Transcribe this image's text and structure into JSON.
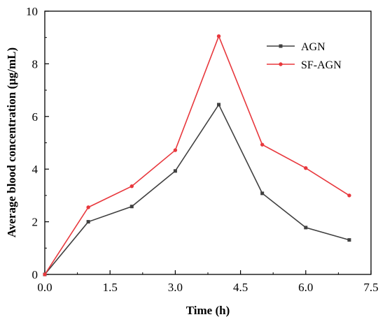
{
  "chart_data": {
    "type": "line",
    "title": "",
    "xlabel": "Time (h)",
    "ylabel": "Average blood concentration (μg/mL)",
    "xlim": [
      0,
      7.5
    ],
    "ylim": [
      0,
      10
    ],
    "xticks": [
      0,
      1.5,
      3.0,
      4.5,
      6.0,
      7.5
    ],
    "xtick_labels": [
      "0.0",
      "1.5",
      "3.0",
      "4.5",
      "6.0",
      "7.5"
    ],
    "yticks": [
      0,
      2,
      4,
      6,
      8,
      10
    ],
    "ytick_labels": [
      "0",
      "2",
      "4",
      "6",
      "8",
      "10"
    ],
    "grid": false,
    "legend_position": "top-right",
    "x": [
      0,
      1,
      2,
      3,
      4,
      5,
      6,
      7
    ],
    "series": [
      {
        "name": "AGN",
        "color": "#404040",
        "marker": "square",
        "values": [
          0,
          2.0,
          2.58,
          3.93,
          6.45,
          3.08,
          1.78,
          1.31
        ]
      },
      {
        "name": "SF-AGN",
        "color": "#e8383d",
        "marker": "circle",
        "values": [
          0,
          2.55,
          3.35,
          4.72,
          9.05,
          4.93,
          4.04,
          3.0
        ]
      }
    ]
  }
}
